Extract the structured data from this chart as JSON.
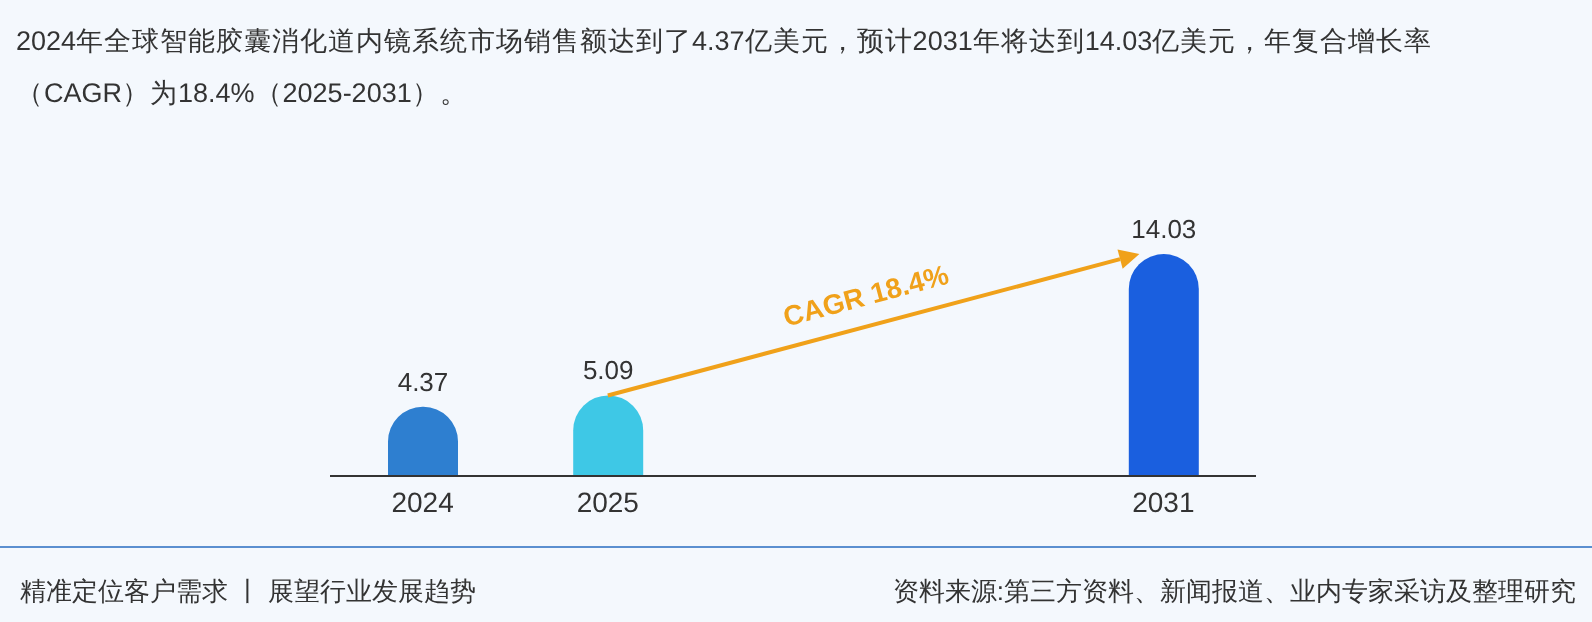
{
  "chart_data": {
    "type": "bar",
    "title": "2024年全球智能胶囊消化道内镜系统市场销售额达到了4.37亿美元，预计2031年将达到14.03亿美元，年复合增长率（CAGR）为18.4%（2025-2031）。",
    "categories": [
      "2024",
      "2025",
      null,
      null,
      "2031"
    ],
    "values": [
      4.37,
      5.09,
      null,
      null,
      14.03
    ],
    "colors": [
      "#2e7fd0",
      "#3ec8e6",
      null,
      null,
      "#1a5fdf"
    ],
    "data_labels": true,
    "annotations": [
      "CAGR 18.4%",
      "精准定位客户需求 丨 展望行业发展趋势",
      "资料来源:第三方资料、新闻报道、业内专家采访及整理研究"
    ]
  }
}
